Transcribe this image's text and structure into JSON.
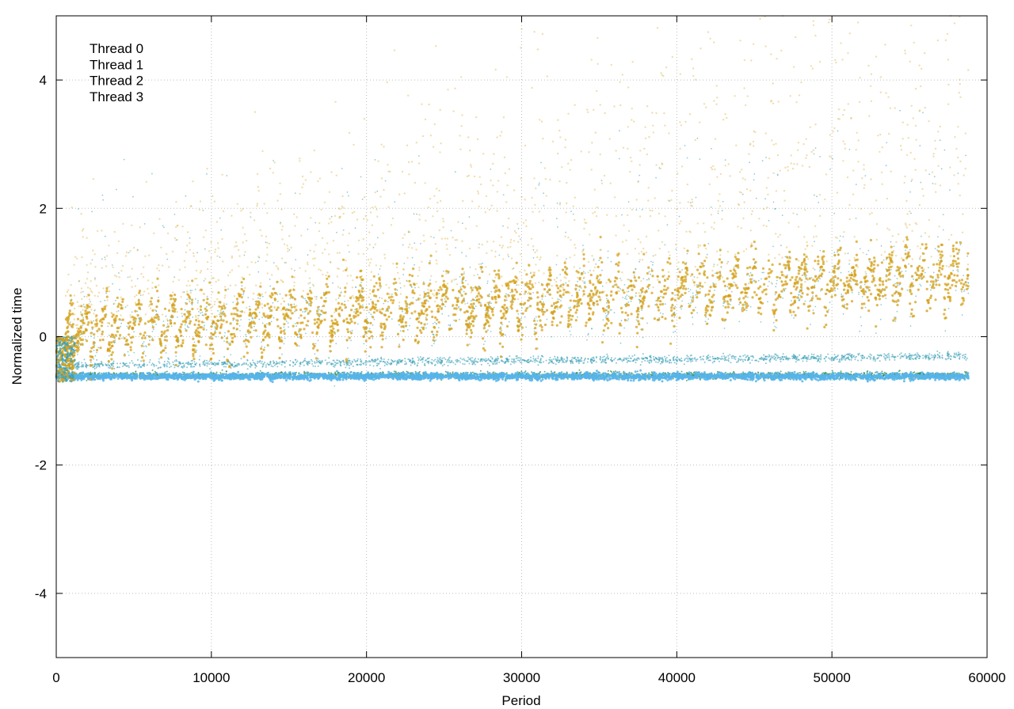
{
  "chart_data": {
    "type": "scatter",
    "title": "",
    "xlabel": "Period",
    "ylabel": "Normalized time",
    "xlim": [
      0,
      60000
    ],
    "ylim": [
      -5,
      5
    ],
    "x_ticks": [
      0,
      10000,
      20000,
      30000,
      40000,
      50000,
      60000
    ],
    "y_ticks": [
      -4,
      -2,
      0,
      2,
      4
    ],
    "x_tick_labels": [
      "0",
      "10000",
      "20000",
      "30000",
      "40000",
      "50000",
      "60000"
    ],
    "y_tick_labels": [
      "-4",
      "-2",
      "0",
      "2",
      "4"
    ],
    "grid": true,
    "legend_position": "top-left",
    "x_range_of_points": [
      0,
      58800
    ],
    "series": [
      {
        "name": "Thread 0",
        "color": "#2e8b57",
        "band": {
          "start": [
            0,
            -0.6
          ],
          "end": [
            58800,
            -0.6
          ]
        }
      },
      {
        "name": "Thread 1",
        "color": "#56b4e9",
        "band": {
          "start": [
            0,
            -0.62
          ],
          "end": [
            58800,
            -0.62
          ]
        }
      },
      {
        "name": "Thread 2",
        "color": "#3aa0b8",
        "band": {
          "start": [
            0,
            -0.45
          ],
          "end": [
            58800,
            -0.3
          ]
        }
      },
      {
        "name": "Thread 3",
        "color": "#d4a017",
        "band": {
          "start": [
            0,
            -0.4
          ],
          "end": [
            58800,
            1.2
          ]
        }
      }
    ]
  }
}
